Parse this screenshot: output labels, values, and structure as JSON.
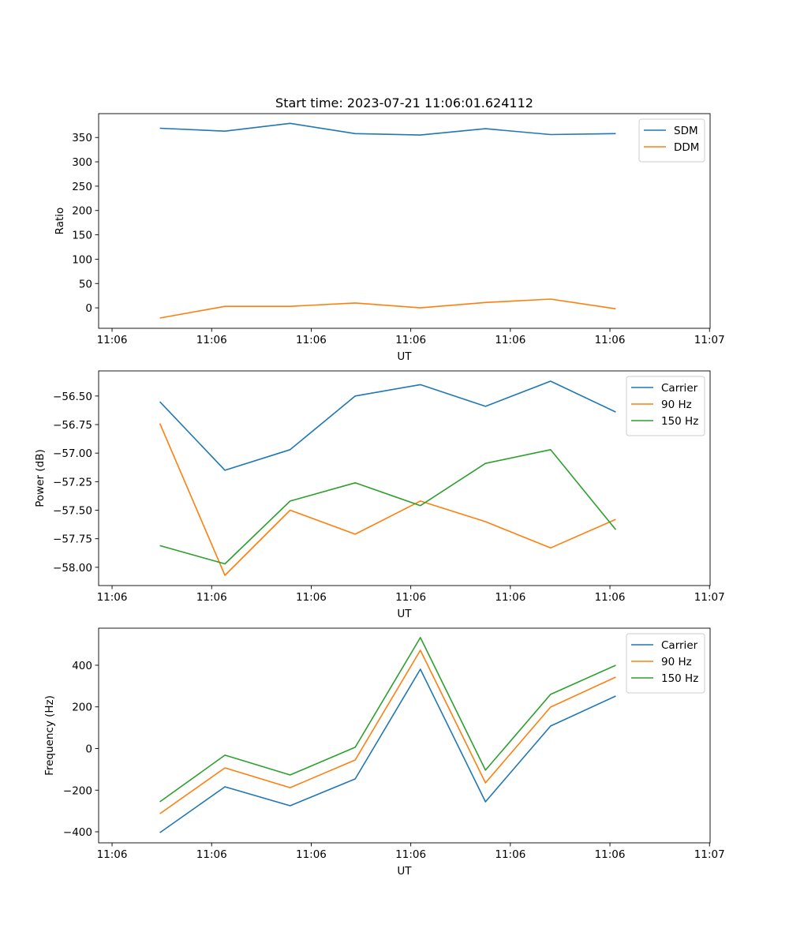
{
  "chart_data": [
    {
      "type": "line",
      "title": "Start time: 2023-07-21 11:06:01.624112",
      "xlabel": "UT",
      "ylabel": "Ratio",
      "xlim": [
        -0.135,
        6.006
      ],
      "xticks": [
        0,
        1,
        2,
        3,
        4,
        5,
        6
      ],
      "xtick_labels": [
        "11:06",
        "11:06",
        "11:06",
        "11:06",
        "11:06",
        "11:06",
        "11:07"
      ],
      "ylim": [
        -42,
        399
      ],
      "yticks": [
        0,
        50,
        100,
        150,
        200,
        250,
        300,
        350
      ],
      "ytick_labels": [
        "0",
        "50",
        "100",
        "150",
        "200",
        "250",
        "300",
        "350"
      ],
      "x": [
        0.48,
        1.134,
        1.788,
        2.442,
        3.096,
        3.75,
        4.404,
        5.058
      ],
      "legend": "top-right",
      "series": [
        {
          "name": "SDM",
          "color": "#1f77b4",
          "values": [
            369,
            363,
            379,
            358,
            355,
            368,
            356,
            358
          ]
        },
        {
          "name": "DDM",
          "color": "#ff7f0e",
          "values": [
            -21,
            3,
            3,
            10,
            0,
            11,
            18,
            -2
          ]
        }
      ]
    },
    {
      "type": "line",
      "xlabel": "UT",
      "ylabel": "Power (dB)",
      "xlim": [
        -0.135,
        6.006
      ],
      "xticks": [
        0,
        1,
        2,
        3,
        4,
        5,
        6
      ],
      "xtick_labels": [
        "11:06",
        "11:06",
        "11:06",
        "11:06",
        "11:06",
        "11:06",
        "11:07"
      ],
      "ylim": [
        -58.16,
        -56.28
      ],
      "yticks": [
        -58.0,
        -57.75,
        -57.5,
        -57.25,
        -57.0,
        -56.75,
        -56.5
      ],
      "ytick_labels": [
        "−58.00",
        "−57.75",
        "−57.50",
        "−57.25",
        "−57.00",
        "−56.75",
        "−56.50"
      ],
      "x": [
        0.48,
        1.134,
        1.788,
        2.442,
        3.096,
        3.75,
        4.404,
        5.058
      ],
      "legend": "top-right",
      "series": [
        {
          "name": "Carrier",
          "color": "#1f77b4",
          "values": [
            -56.55,
            -57.15,
            -56.97,
            -56.5,
            -56.4,
            -56.59,
            -56.37,
            -56.64
          ]
        },
        {
          "name": "90 Hz",
          "color": "#ff7f0e",
          "values": [
            -56.74,
            -58.07,
            -57.5,
            -57.71,
            -57.42,
            -57.6,
            -57.83,
            -57.58
          ]
        },
        {
          "name": "150 Hz",
          "color": "#2ca02c",
          "values": [
            -57.81,
            -57.97,
            -57.42,
            -57.26,
            -57.46,
            -57.09,
            -56.97,
            -57.67
          ]
        }
      ]
    },
    {
      "type": "line",
      "xlabel": "UT",
      "ylabel": "Frequency (Hz)",
      "xlim": [
        -0.135,
        6.006
      ],
      "xticks": [
        0,
        1,
        2,
        3,
        4,
        5,
        6
      ],
      "xtick_labels": [
        "11:06",
        "11:06",
        "11:06",
        "11:06",
        "11:06",
        "11:06",
        "11:07"
      ],
      "ylim": [
        -453,
        578
      ],
      "yticks": [
        -400,
        -200,
        0,
        200,
        400
      ],
      "ytick_labels": [
        "−400",
        "−200",
        "0",
        "200",
        "400"
      ],
      "x": [
        0.48,
        1.134,
        1.788,
        2.442,
        3.096,
        3.75,
        4.404,
        5.058
      ],
      "legend": "top-right",
      "series": [
        {
          "name": "Carrier",
          "color": "#1f77b4",
          "values": [
            -404,
            -184,
            -275,
            -146,
            381,
            -256,
            108,
            252
          ]
        },
        {
          "name": "90 Hz",
          "color": "#ff7f0e",
          "values": [
            -313,
            -93,
            -188,
            -55,
            472,
            -165,
            199,
            343
          ]
        },
        {
          "name": "150 Hz",
          "color": "#2ca02c",
          "values": [
            -256,
            -32,
            -127,
            6,
            533,
            -104,
            260,
            400
          ]
        }
      ]
    }
  ]
}
